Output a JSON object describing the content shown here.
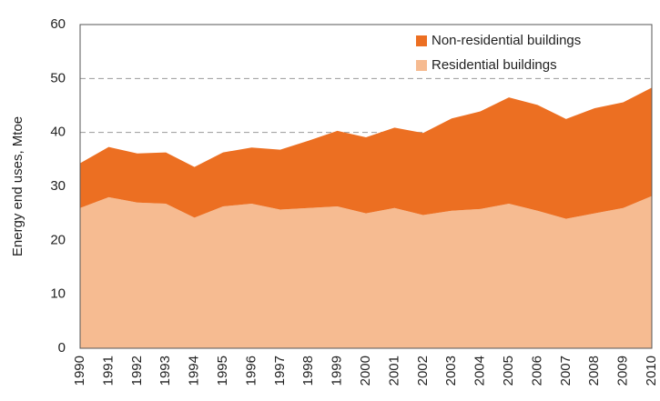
{
  "chart_data": {
    "type": "stacked-area",
    "y_label": "Energy end uses, Mtoe",
    "categories": [
      "1990",
      "1991",
      "1992",
      "1993",
      "1994",
      "1995",
      "1996",
      "1997",
      "1998",
      "1999",
      "2000",
      "2001",
      "2002",
      "2003",
      "2004",
      "2005",
      "2006",
      "2007",
      "2008",
      "2009",
      "2010"
    ],
    "series": [
      {
        "name": "Residential buildings",
        "color": "#f6bb91",
        "values": [
          26.0,
          28.0,
          27.0,
          26.8,
          24.2,
          26.3,
          26.8,
          25.7,
          26.0,
          26.3,
          25.0,
          26.0,
          24.7,
          25.5,
          25.8,
          26.8,
          25.5,
          24.0,
          25.0,
          26.0,
          28.2
        ]
      },
      {
        "name": "Non-residential buildings",
        "color": "#ec6f22",
        "values": [
          8.3,
          9.3,
          9.1,
          9.5,
          9.4,
          10.0,
          10.4,
          11.1,
          12.5,
          14.0,
          14.1,
          14.9,
          15.2,
          17.1,
          18.1,
          19.7,
          19.6,
          18.5,
          19.5,
          19.6,
          20.1
        ]
      }
    ],
    "ylim": [
      0,
      60
    ],
    "yticks": [
      0,
      10,
      20,
      30,
      40,
      50,
      60
    ],
    "grid": true,
    "legend": "top-right"
  }
}
